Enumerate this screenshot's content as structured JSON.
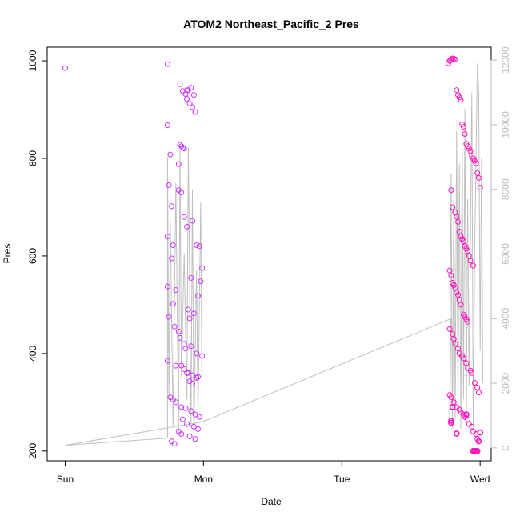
{
  "chart_data": {
    "type": "scatter",
    "title": "ATOM2 Northeast_Pacific_2 Pres",
    "xlabel": "Date",
    "ylabel": "Pres",
    "x_ticks": [
      "Sun",
      "Mon",
      "Tue",
      "Wed"
    ],
    "y_ticks": [
      "200",
      "400",
      "600",
      "800",
      "1000"
    ],
    "y2_ticks": [
      "0",
      "2000",
      "4000",
      "6000",
      "8000",
      "10000",
      "12000"
    ],
    "xlim_days": [
      -0.13,
      3.08
    ],
    "ylim": [
      180,
      1028
    ],
    "y2lim": [
      -400,
      12400
    ],
    "colors": {
      "points_mon": "#cc33ff",
      "points_wed": "#ff11bb",
      "secondary_line": "#bfbfbf",
      "secondary_axis": "#bbbbbb"
    },
    "series": [
      {
        "kind": "points",
        "axis": "left",
        "x": [
          0.0,
          0.74,
          0.74,
          0.75,
          0.74,
          0.74,
          0.75,
          0.74,
          0.76,
          0.77,
          0.78,
          0.8,
          0.77,
          0.78,
          0.79,
          0.83,
          0.84,
          0.85,
          0.86,
          0.82,
          0.88,
          0.89,
          0.91,
          0.93,
          0.83,
          0.85,
          0.87,
          0.88,
          0.9,
          0.92,
          0.94,
          0.82,
          0.84,
          0.86,
          0.88,
          0.92,
          0.95,
          0.97,
          0.99,
          0.98,
          0.91,
          0.96,
          0.89,
          0.93,
          0.9,
          0.82,
          0.83,
          0.86,
          0.87,
          0.91,
          0.95,
          0.99,
          0.84,
          0.88,
          0.96,
          0.9,
          0.92,
          0.76,
          0.78,
          0.8,
          0.84,
          0.87,
          0.91,
          0.94,
          0.97,
          0.85,
          0.88,
          0.93,
          0.96,
          0.82,
          0.84,
          0.9,
          0.94,
          0.77,
          0.79,
          0.8,
          0.86,
          0.89,
          0.92,
          0.95
        ],
        "y": [
          985,
          993,
          868,
          745,
          640,
          537,
          475,
          385,
          808,
          702,
          622,
          530,
          595,
          502,
          455,
          828,
          825,
          822,
          820,
          788,
          940,
          940,
          945,
          930,
          952,
          938,
          932,
          922,
          912,
          905,
          895,
          735,
          730,
          680,
          660,
          672,
          622,
          620,
          575,
          548,
          555,
          518,
          490,
          482,
          472,
          445,
          432,
          420,
          410,
          415,
          400,
          395,
          375,
          360,
          352,
          343,
          338,
          310,
          305,
          300,
          290,
          288,
          282,
          275,
          270,
          265,
          255,
          250,
          245,
          240,
          235,
          230,
          225,
          220,
          215,
          375,
          368,
          360,
          355,
          350
        ],
        "size": "default"
      },
      {
        "kind": "points",
        "axis": "left",
        "x": [
          2.77,
          2.78,
          2.79,
          2.8,
          2.81,
          2.82,
          2.83,
          2.84,
          2.85,
          2.86,
          2.87,
          2.88,
          2.89,
          2.9,
          2.91,
          2.92,
          2.93,
          2.94,
          2.95,
          2.96,
          2.97,
          2.98,
          2.99,
          3.0,
          2.79,
          2.8,
          2.82,
          2.83,
          2.84,
          2.85,
          2.86,
          2.87,
          2.88,
          2.89,
          2.9,
          2.91,
          2.92,
          2.93,
          2.95,
          2.78,
          2.79,
          2.8,
          2.81,
          2.82,
          2.83,
          2.84,
          2.85,
          2.86,
          2.88,
          2.89,
          2.9,
          2.91,
          2.78,
          2.8,
          2.81,
          2.82,
          2.84,
          2.85,
          2.87,
          2.88,
          2.9,
          2.91,
          2.93,
          2.94,
          2.96,
          2.98,
          2.99,
          2.78,
          2.79,
          2.81,
          2.83,
          2.85,
          2.86,
          2.88,
          2.89,
          2.91,
          2.92,
          2.94,
          2.95,
          2.97,
          2.98
        ],
        "y": [
          995,
          1000,
          1003,
          1005,
          1004,
          1003,
          940,
          930,
          925,
          920,
          870,
          865,
          850,
          830,
          825,
          820,
          815,
          805,
          800,
          795,
          790,
          770,
          760,
          740,
          735,
          700,
          690,
          680,
          670,
          650,
          640,
          635,
          630,
          620,
          615,
          610,
          600,
          590,
          580,
          570,
          560,
          545,
          540,
          535,
          525,
          520,
          510,
          500,
          480,
          475,
          470,
          465,
          450,
          440,
          430,
          420,
          410,
          400,
          395,
          390,
          380,
          370,
          365,
          360,
          340,
          330,
          320,
          315,
          310,
          300,
          290,
          285,
          280,
          275,
          270,
          265,
          255,
          250,
          240,
          235,
          225
        ],
        "size": "default"
      },
      {
        "kind": "points_dense",
        "axis": "left",
        "x": [
          2.79,
          2.79,
          2.8,
          2.83,
          2.9,
          2.95,
          2.96,
          2.97,
          2.98,
          2.99,
          3.0
        ],
        "y": [
          262,
          258,
          290,
          236,
          275,
          200,
          200,
          200,
          200,
          220,
          238
        ]
      },
      {
        "kind": "line",
        "axis": "right",
        "x": [
          0.0,
          0.74,
          0.74,
          0.75,
          0.76,
          0.78,
          0.8,
          0.82,
          0.83,
          0.84,
          0.86,
          0.88,
          0.89,
          0.91,
          0.92,
          0.93,
          0.95,
          0.96,
          0.98,
          0.99,
          0.0,
          0.99,
          2.79,
          2.78,
          2.79,
          2.8,
          2.81,
          2.82,
          2.83,
          2.84,
          2.85,
          2.86,
          2.87,
          2.88,
          2.89,
          2.9,
          2.91,
          2.92,
          2.94,
          2.95,
          2.96,
          2.98,
          2.99,
          3.0,
          3.01,
          3.02
        ],
        "y": [
          80,
          300,
          9000,
          1500,
          7000,
          700,
          8200,
          400,
          9200,
          2200,
          6000,
          1500,
          9300,
          700,
          8000,
          300,
          5500,
          1100,
          7600,
          800,
          80,
          800,
          4000,
          700,
          8500,
          600,
          7800,
          900,
          9800,
          1300,
          8800,
          600,
          9500,
          1500,
          10500,
          900,
          7700,
          1900,
          11000,
          700,
          6000,
          11900,
          11000,
          3000,
          9000,
          2000
        ]
      }
    ]
  }
}
